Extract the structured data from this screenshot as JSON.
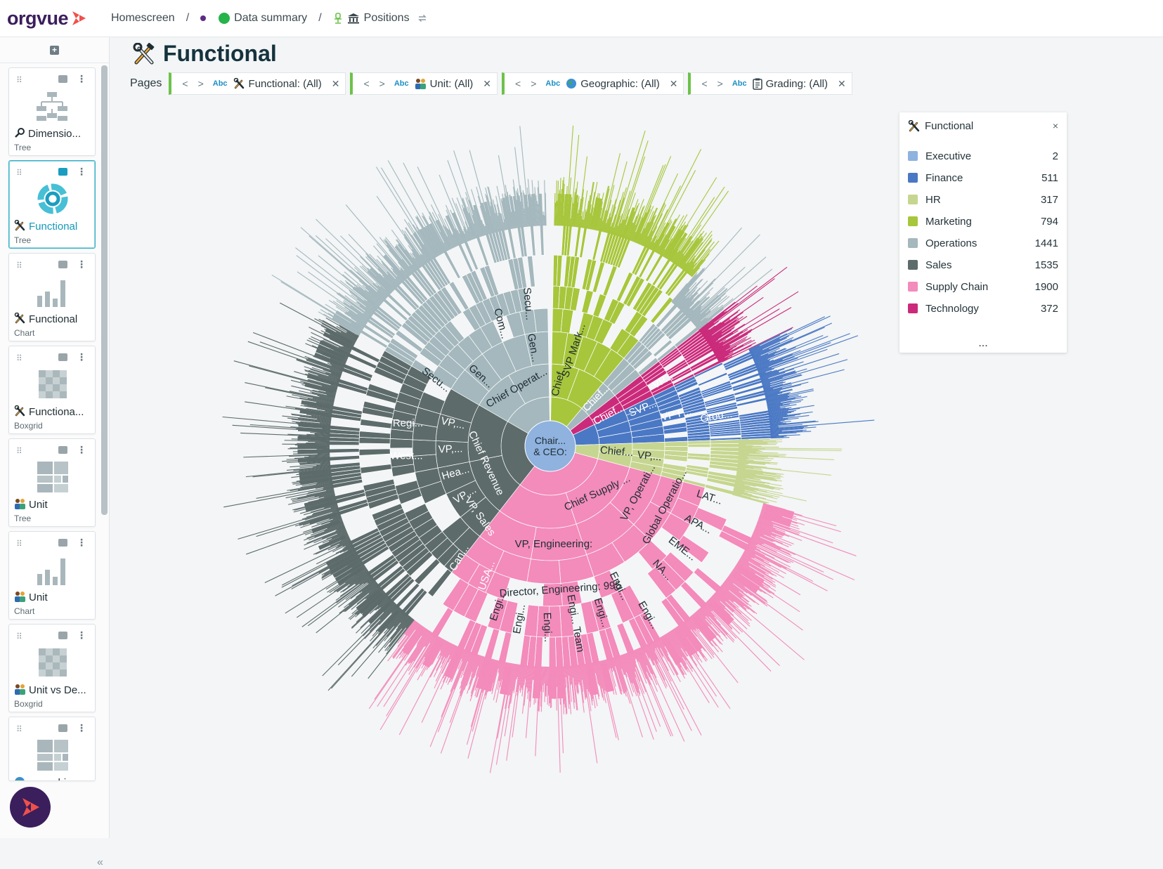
{
  "app": {
    "logo_text": "orgvue"
  },
  "breadcrumbs": [
    {
      "label": "Homescreen"
    },
    {
      "label": "Data summary"
    },
    {
      "label": "Positions"
    }
  ],
  "breadcrumb_separator": "/",
  "sidebar": {
    "add_icon": "plus-icon",
    "cards": [
      {
        "name": "Dimensio...",
        "type": "Tree",
        "icon": "magnifier-icon",
        "thumb": "org-tree"
      },
      {
        "name": "Functional",
        "type": "Tree",
        "icon": "tools-icon",
        "thumb": "sunburst",
        "active": true
      },
      {
        "name": "Functional",
        "type": "Chart",
        "icon": "tools-icon",
        "thumb": "bars"
      },
      {
        "name": "Functiona...",
        "type": "Boxgrid",
        "icon": "tools-icon",
        "thumb": "boxgrid"
      },
      {
        "name": "Unit",
        "type": "Tree",
        "icon": "people-icon",
        "thumb": "treemap"
      },
      {
        "name": "Unit",
        "type": "Chart",
        "icon": "people-icon",
        "thumb": "bars"
      },
      {
        "name": "Unit vs De...",
        "type": "Boxgrid",
        "icon": "people-icon",
        "thumb": "boxgrid"
      },
      {
        "name": "...graphic",
        "type": "",
        "icon": "globe-icon",
        "thumb": "treemap"
      }
    ],
    "collapse_label": "«"
  },
  "header": {
    "title": "Functional",
    "pages_label": "Pages"
  },
  "page_filters": [
    {
      "type_tag": "Abc",
      "label": "Functional: (All)",
      "icon": "tools-icon"
    },
    {
      "type_tag": "Abc",
      "label": "Unit: (All)",
      "icon": "people-icon"
    },
    {
      "type_tag": "Abc",
      "label": "Geographic: (All)",
      "icon": "globe-icon"
    },
    {
      "type_tag": "Abc",
      "label": "Grading: (All)",
      "icon": "clipboard-icon"
    }
  ],
  "legend": {
    "title": "Functional",
    "close": "×",
    "more": "...",
    "items": [
      {
        "label": "Executive",
        "count": "2",
        "color": "#8fb2df"
      },
      {
        "label": "Finance",
        "count": "511",
        "color": "#4a78c4"
      },
      {
        "label": "HR",
        "count": "317",
        "color": "#c6d690"
      },
      {
        "label": "Marketing",
        "count": "794",
        "color": "#a7c63c"
      },
      {
        "label": "Operations",
        "count": "1441",
        "color": "#a4b8bd"
      },
      {
        "label": "Sales",
        "count": "1535",
        "color": "#5d6b6b"
      },
      {
        "label": "Supply Chain",
        "count": "1900",
        "color": "#f38bbb"
      },
      {
        "label": "Technology",
        "count": "372",
        "color": "#cb2a7b"
      }
    ]
  },
  "chart_data": {
    "type": "sunburst",
    "center_label": [
      "Chair...",
      "& CEO:"
    ],
    "segments": [
      {
        "function": "Executive",
        "count": 2
      },
      {
        "function": "Marketing",
        "count": 794
      },
      {
        "function": "Technology",
        "count": 372
      },
      {
        "function": "Finance",
        "count": 511
      },
      {
        "function": "HR",
        "count": 317
      },
      {
        "function": "Supply Chain",
        "count": 1900
      },
      {
        "function": "Sales",
        "count": 1535
      },
      {
        "function": "Operations",
        "count": 1441
      }
    ],
    "labels": [
      "Chief...",
      "SVP Mark...",
      "Chief...",
      "Chief...",
      "SVP...",
      "VP...",
      "VP F...",
      "Grou...",
      "Chief...",
      "VP,...",
      "Chief Supply ...",
      "VP, Operati...",
      "Global Operatio...",
      "LAT...",
      "APA...",
      "EME...",
      "NA...",
      "VP, Engineering:",
      "Director, Engineering: 995",
      "Engi...",
      "Engi...",
      "Engi...",
      "Engi... Team",
      "Engi...",
      "Engi...",
      "Engi...",
      "Chief Revenue",
      "VP, Sales",
      "Regi...",
      "West...",
      "VP,...",
      "VP,...",
      "Hea...",
      "VP,...",
      "Can...",
      "USA...",
      "Chief Operat...",
      "Gen...",
      "Gen...",
      "Secu...",
      "Com...",
      "Secu..."
    ]
  }
}
